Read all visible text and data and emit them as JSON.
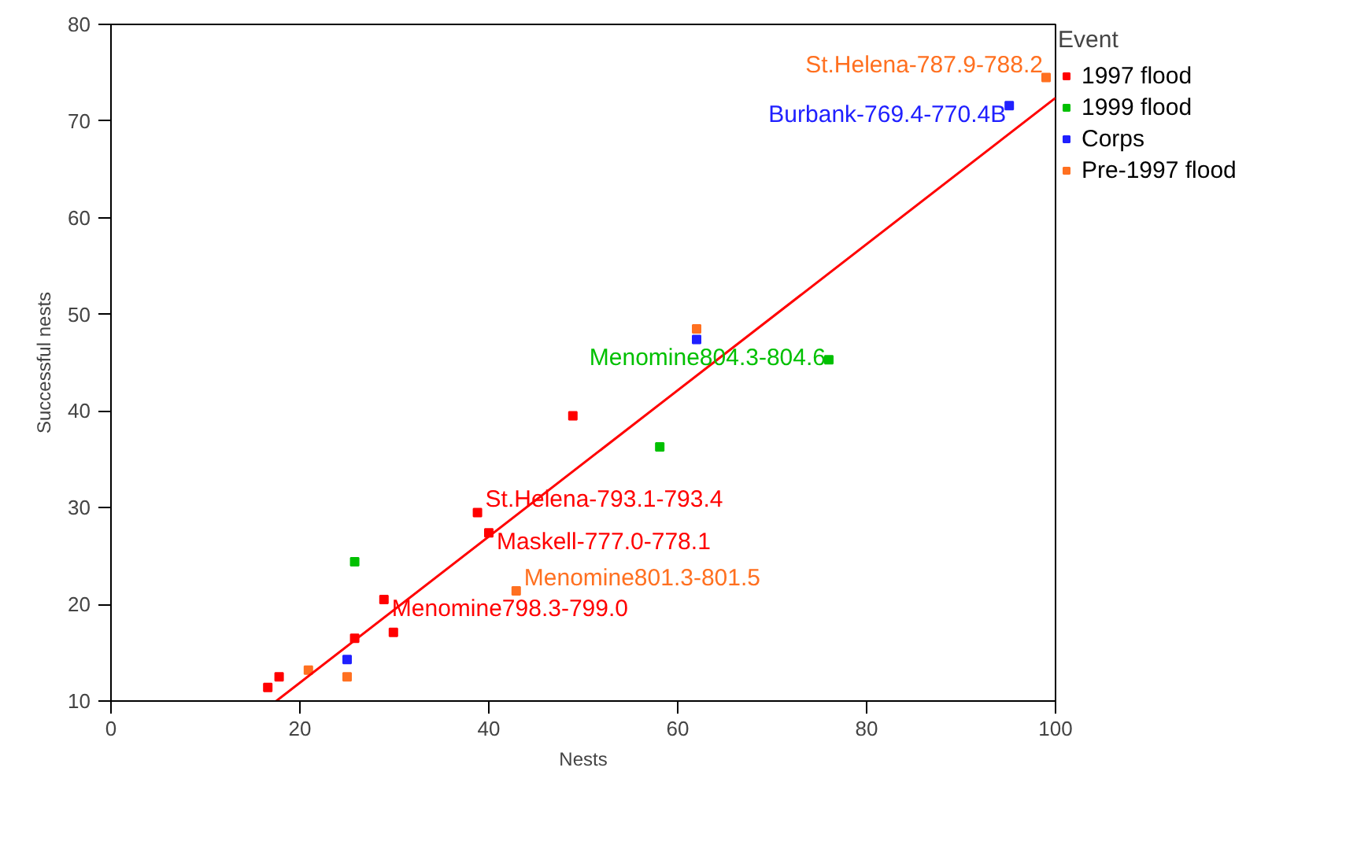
{
  "chart_data": {
    "type": "scatter",
    "xlabel": "Nests",
    "ylabel": "Successful nests",
    "legend_title": "Event",
    "legend": "right",
    "marker": "square",
    "grid": false,
    "xlim": [
      0,
      100
    ],
    "ylim": [
      10,
      80
    ],
    "xticks": [
      0,
      20,
      40,
      60,
      80,
      100
    ],
    "yticks": [
      10,
      20,
      30,
      40,
      50,
      60,
      70,
      80
    ],
    "series": [
      {
        "name": "1997 flood",
        "color": "#ff0000",
        "x": [
          16.6,
          17.8,
          25.8,
          29.9,
          28.9,
          38.8,
          40.0,
          48.9
        ],
        "values": [
          11.4,
          12.5,
          16.5,
          17.1,
          20.5,
          29.5,
          27.4,
          39.5
        ]
      },
      {
        "name": "1999 flood",
        "color": "#00c000",
        "x": [
          25.8,
          58.1,
          76.0
        ],
        "values": [
          24.4,
          36.3,
          45.3
        ]
      },
      {
        "name": "Corps",
        "color": "#2020ff",
        "x": [
          25.0,
          62.0,
          95.1
        ],
        "values": [
          14.3,
          47.4,
          71.6
        ]
      },
      {
        "name": "Pre-1997 flood",
        "color": "#ff7020",
        "x": [
          20.9,
          25.0,
          42.9,
          62.0,
          99.0
        ],
        "values": [
          13.2,
          12.5,
          21.4,
          48.5,
          74.5
        ]
      },
      {
        "type": "line",
        "marker": "none",
        "color": "#ff0000",
        "x": [
          17.5,
          100
        ],
        "values": [
          10,
          72.4
        ]
      }
    ],
    "annotations": [
      {
        "text": "Menomine798.3-799.0",
        "x": 28.9,
        "y": 20.5
      },
      {
        "text": "St.Helena-793.1-793.4",
        "x": 38.8,
        "y": 29.5
      },
      {
        "text": "Maskell-777.0-778.1",
        "x": 40.0,
        "y": 27.4
      },
      {
        "text": "Menomine804.3-804.6",
        "x": 76.0,
        "y": 45.3
      },
      {
        "text": "Burbank-769.4-770.4B",
        "x": 95.1,
        "y": 71.6
      },
      {
        "text": "Menomine801.3-801.5",
        "x": 42.9,
        "y": 21.4
      },
      {
        "text": "St.Helena-787.9-788.2",
        "x": 99.0,
        "y": 74.5
      }
    ]
  }
}
